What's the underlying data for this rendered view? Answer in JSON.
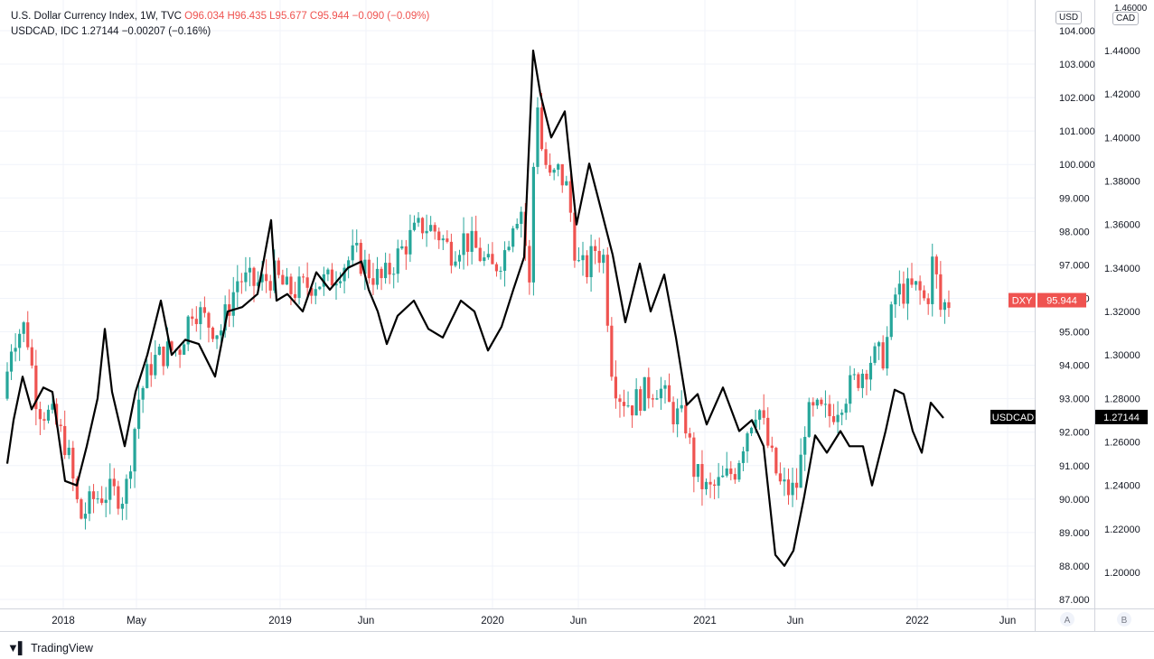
{
  "legend": {
    "dxy_title": "U.S. Dollar Currency Index, 1W, TVC",
    "dxy_ohlc": "O96.034  H96.435  L95.677  C95.944  −0.090 (−0.09%)",
    "usdcad_title": "USDCAD, IDC  1.27144  −0.00207 (−0.16%)"
  },
  "scale_units": {
    "left": "USD",
    "right_line1": "1.46000",
    "right_line2": "CAD"
  },
  "scale_buttons": {
    "a": "A",
    "b": "B"
  },
  "branding": "TradingView",
  "colors": {
    "up": "#26a69a",
    "down": "#ef5350",
    "usdcad_line": "#000000",
    "dxy_tag": "#ef5350",
    "usdcad_tag": "#000000"
  },
  "chart_data": {
    "type": "candlestick+line",
    "x_tick_labels": [
      "2018",
      "May",
      "2019",
      "Jun",
      "2020",
      "Jun",
      "2021",
      "Jun",
      "2022",
      "Jun"
    ],
    "left_axis": {
      "label": "USD",
      "ticks": [
        "104.000",
        "103.000",
        "102.000",
        "101.000",
        "100.000",
        "99.000",
        "98.000",
        "97.000",
        "96.000",
        "95.000",
        "94.000",
        "93.000",
        "92.000",
        "91.000",
        "90.000",
        "89.000",
        "88.000",
        "87.000"
      ],
      "ylim": [
        86.8,
        104.5
      ]
    },
    "right_axis": {
      "label": "CAD",
      "ticks": [
        "1.44000",
        "1.42000",
        "1.40000",
        "1.38000",
        "1.36000",
        "1.34000",
        "1.32000",
        "1.30000",
        "1.28000",
        "1.26000",
        "1.24000",
        "1.22000",
        "1.20000"
      ],
      "ylim": [
        1.188,
        1.463
      ]
    },
    "last_values": [
      {
        "tag": "DXY",
        "value": "95.944"
      },
      {
        "tag": "USDCAD",
        "value": "1.27144"
      }
    ],
    "dxy_weekly_close_path": [
      [
        0,
        93.0
      ],
      [
        10,
        94.8
      ],
      [
        25,
        95.2
      ],
      [
        38,
        92.8
      ],
      [
        55,
        92.4
      ],
      [
        70,
        91.6
      ],
      [
        85,
        89.4
      ],
      [
        100,
        90.0
      ],
      [
        115,
        90.2
      ],
      [
        135,
        90.1
      ],
      [
        150,
        93.0
      ],
      [
        165,
        94.1
      ],
      [
        180,
        94.4
      ],
      [
        195,
        94.5
      ],
      [
        210,
        95.8
      ],
      [
        225,
        95.3
      ],
      [
        240,
        95.0
      ],
      [
        260,
        96.6
      ],
      [
        280,
        96.4
      ],
      [
        300,
        96.7
      ],
      [
        315,
        96.2
      ],
      [
        330,
        96.3
      ],
      [
        345,
        96.5
      ],
      [
        360,
        96.5
      ],
      [
        375,
        97.0
      ],
      [
        390,
        97.3
      ],
      [
        405,
        96.8
      ],
      [
        420,
        96.5
      ],
      [
        435,
        97.2
      ],
      [
        450,
        97.8
      ],
      [
        465,
        98.2
      ],
      [
        480,
        98.0
      ],
      [
        495,
        97.4
      ],
      [
        510,
        97.8
      ],
      [
        525,
        97.4
      ],
      [
        540,
        96.8
      ],
      [
        555,
        97.4
      ],
      [
        565,
        98.5
      ],
      [
        575,
        98.7
      ],
      [
        582,
        96.0
      ],
      [
        590,
        102.4
      ],
      [
        596,
        100.5
      ],
      [
        605,
        99.5
      ],
      [
        615,
        99.8
      ],
      [
        625,
        99.2
      ],
      [
        635,
        97.0
      ],
      [
        645,
        96.8
      ],
      [
        655,
        97.5
      ],
      [
        665,
        97.2
      ],
      [
        672,
        94.2
      ],
      [
        680,
        93.2
      ],
      [
        695,
        92.8
      ],
      [
        710,
        93.2
      ],
      [
        725,
        93.4
      ],
      [
        740,
        92.6
      ],
      [
        755,
        92.3
      ],
      [
        765,
        90.8
      ],
      [
        780,
        90.2
      ],
      [
        795,
        90.5
      ],
      [
        810,
        90.9
      ],
      [
        822,
        92.0
      ],
      [
        835,
        92.9
      ],
      [
        848,
        91.4
      ],
      [
        860,
        90.4
      ],
      [
        872,
        90.2
      ],
      [
        880,
        90.5
      ],
      [
        888,
        92.4
      ],
      [
        900,
        92.6
      ],
      [
        915,
        92.5
      ],
      [
        930,
        93.1
      ],
      [
        945,
        93.6
      ],
      [
        960,
        94.2
      ],
      [
        975,
        94.3
      ],
      [
        988,
        96.2
      ],
      [
        1000,
        96.2
      ],
      [
        1012,
        96.3
      ],
      [
        1022,
        95.8
      ],
      [
        1030,
        97.4
      ],
      [
        1036,
        95.6
      ],
      [
        1044,
        95.9
      ]
    ],
    "usdcad_close_path": [
      [
        8,
        1.25
      ],
      [
        15,
        1.27
      ],
      [
        25,
        1.29
      ],
      [
        35,
        1.275
      ],
      [
        48,
        1.285
      ],
      [
        58,
        1.283
      ],
      [
        72,
        1.242
      ],
      [
        85,
        1.24
      ],
      [
        96,
        1.258
      ],
      [
        108,
        1.28
      ],
      [
        116,
        1.312
      ],
      [
        124,
        1.283
      ],
      [
        138,
        1.258
      ],
      [
        150,
        1.283
      ],
      [
        163,
        1.3
      ],
      [
        178,
        1.325
      ],
      [
        190,
        1.3
      ],
      [
        205,
        1.307
      ],
      [
        220,
        1.305
      ],
      [
        238,
        1.29
      ],
      [
        252,
        1.32
      ],
      [
        268,
        1.322
      ],
      [
        285,
        1.328
      ],
      [
        300,
        1.362
      ],
      [
        306,
        1.325
      ],
      [
        318,
        1.328
      ],
      [
        335,
        1.32
      ],
      [
        350,
        1.338
      ],
      [
        365,
        1.33
      ],
      [
        385,
        1.34
      ],
      [
        400,
        1.343
      ],
      [
        408,
        1.33
      ],
      [
        418,
        1.32
      ],
      [
        428,
        1.305
      ],
      [
        440,
        1.318
      ],
      [
        458,
        1.325
      ],
      [
        474,
        1.312
      ],
      [
        490,
        1.308
      ],
      [
        510,
        1.325
      ],
      [
        525,
        1.32
      ],
      [
        540,
        1.302
      ],
      [
        555,
        1.313
      ],
      [
        568,
        1.33
      ],
      [
        580,
        1.345
      ],
      [
        590,
        1.44
      ],
      [
        598,
        1.42
      ],
      [
        610,
        1.4
      ],
      [
        625,
        1.412
      ],
      [
        638,
        1.36
      ],
      [
        652,
        1.388
      ],
      [
        662,
        1.372
      ],
      [
        678,
        1.346
      ],
      [
        692,
        1.315
      ],
      [
        708,
        1.342
      ],
      [
        720,
        1.32
      ],
      [
        735,
        1.337
      ],
      [
        748,
        1.308
      ],
      [
        760,
        1.277
      ],
      [
        772,
        1.282
      ],
      [
        782,
        1.268
      ],
      [
        800,
        1.285
      ],
      [
        818,
        1.265
      ],
      [
        832,
        1.27
      ],
      [
        845,
        1.258
      ],
      [
        858,
        1.208
      ],
      [
        868,
        1.203
      ],
      [
        878,
        1.21
      ],
      [
        890,
        1.235
      ],
      [
        902,
        1.263
      ],
      [
        915,
        1.255
      ],
      [
        930,
        1.265
      ],
      [
        940,
        1.258
      ],
      [
        955,
        1.258
      ],
      [
        965,
        1.24
      ],
      [
        980,
        1.265
      ],
      [
        990,
        1.284
      ],
      [
        1000,
        1.282
      ],
      [
        1010,
        1.265
      ],
      [
        1020,
        1.255
      ],
      [
        1030,
        1.278
      ],
      [
        1044,
        1.271
      ]
    ]
  }
}
